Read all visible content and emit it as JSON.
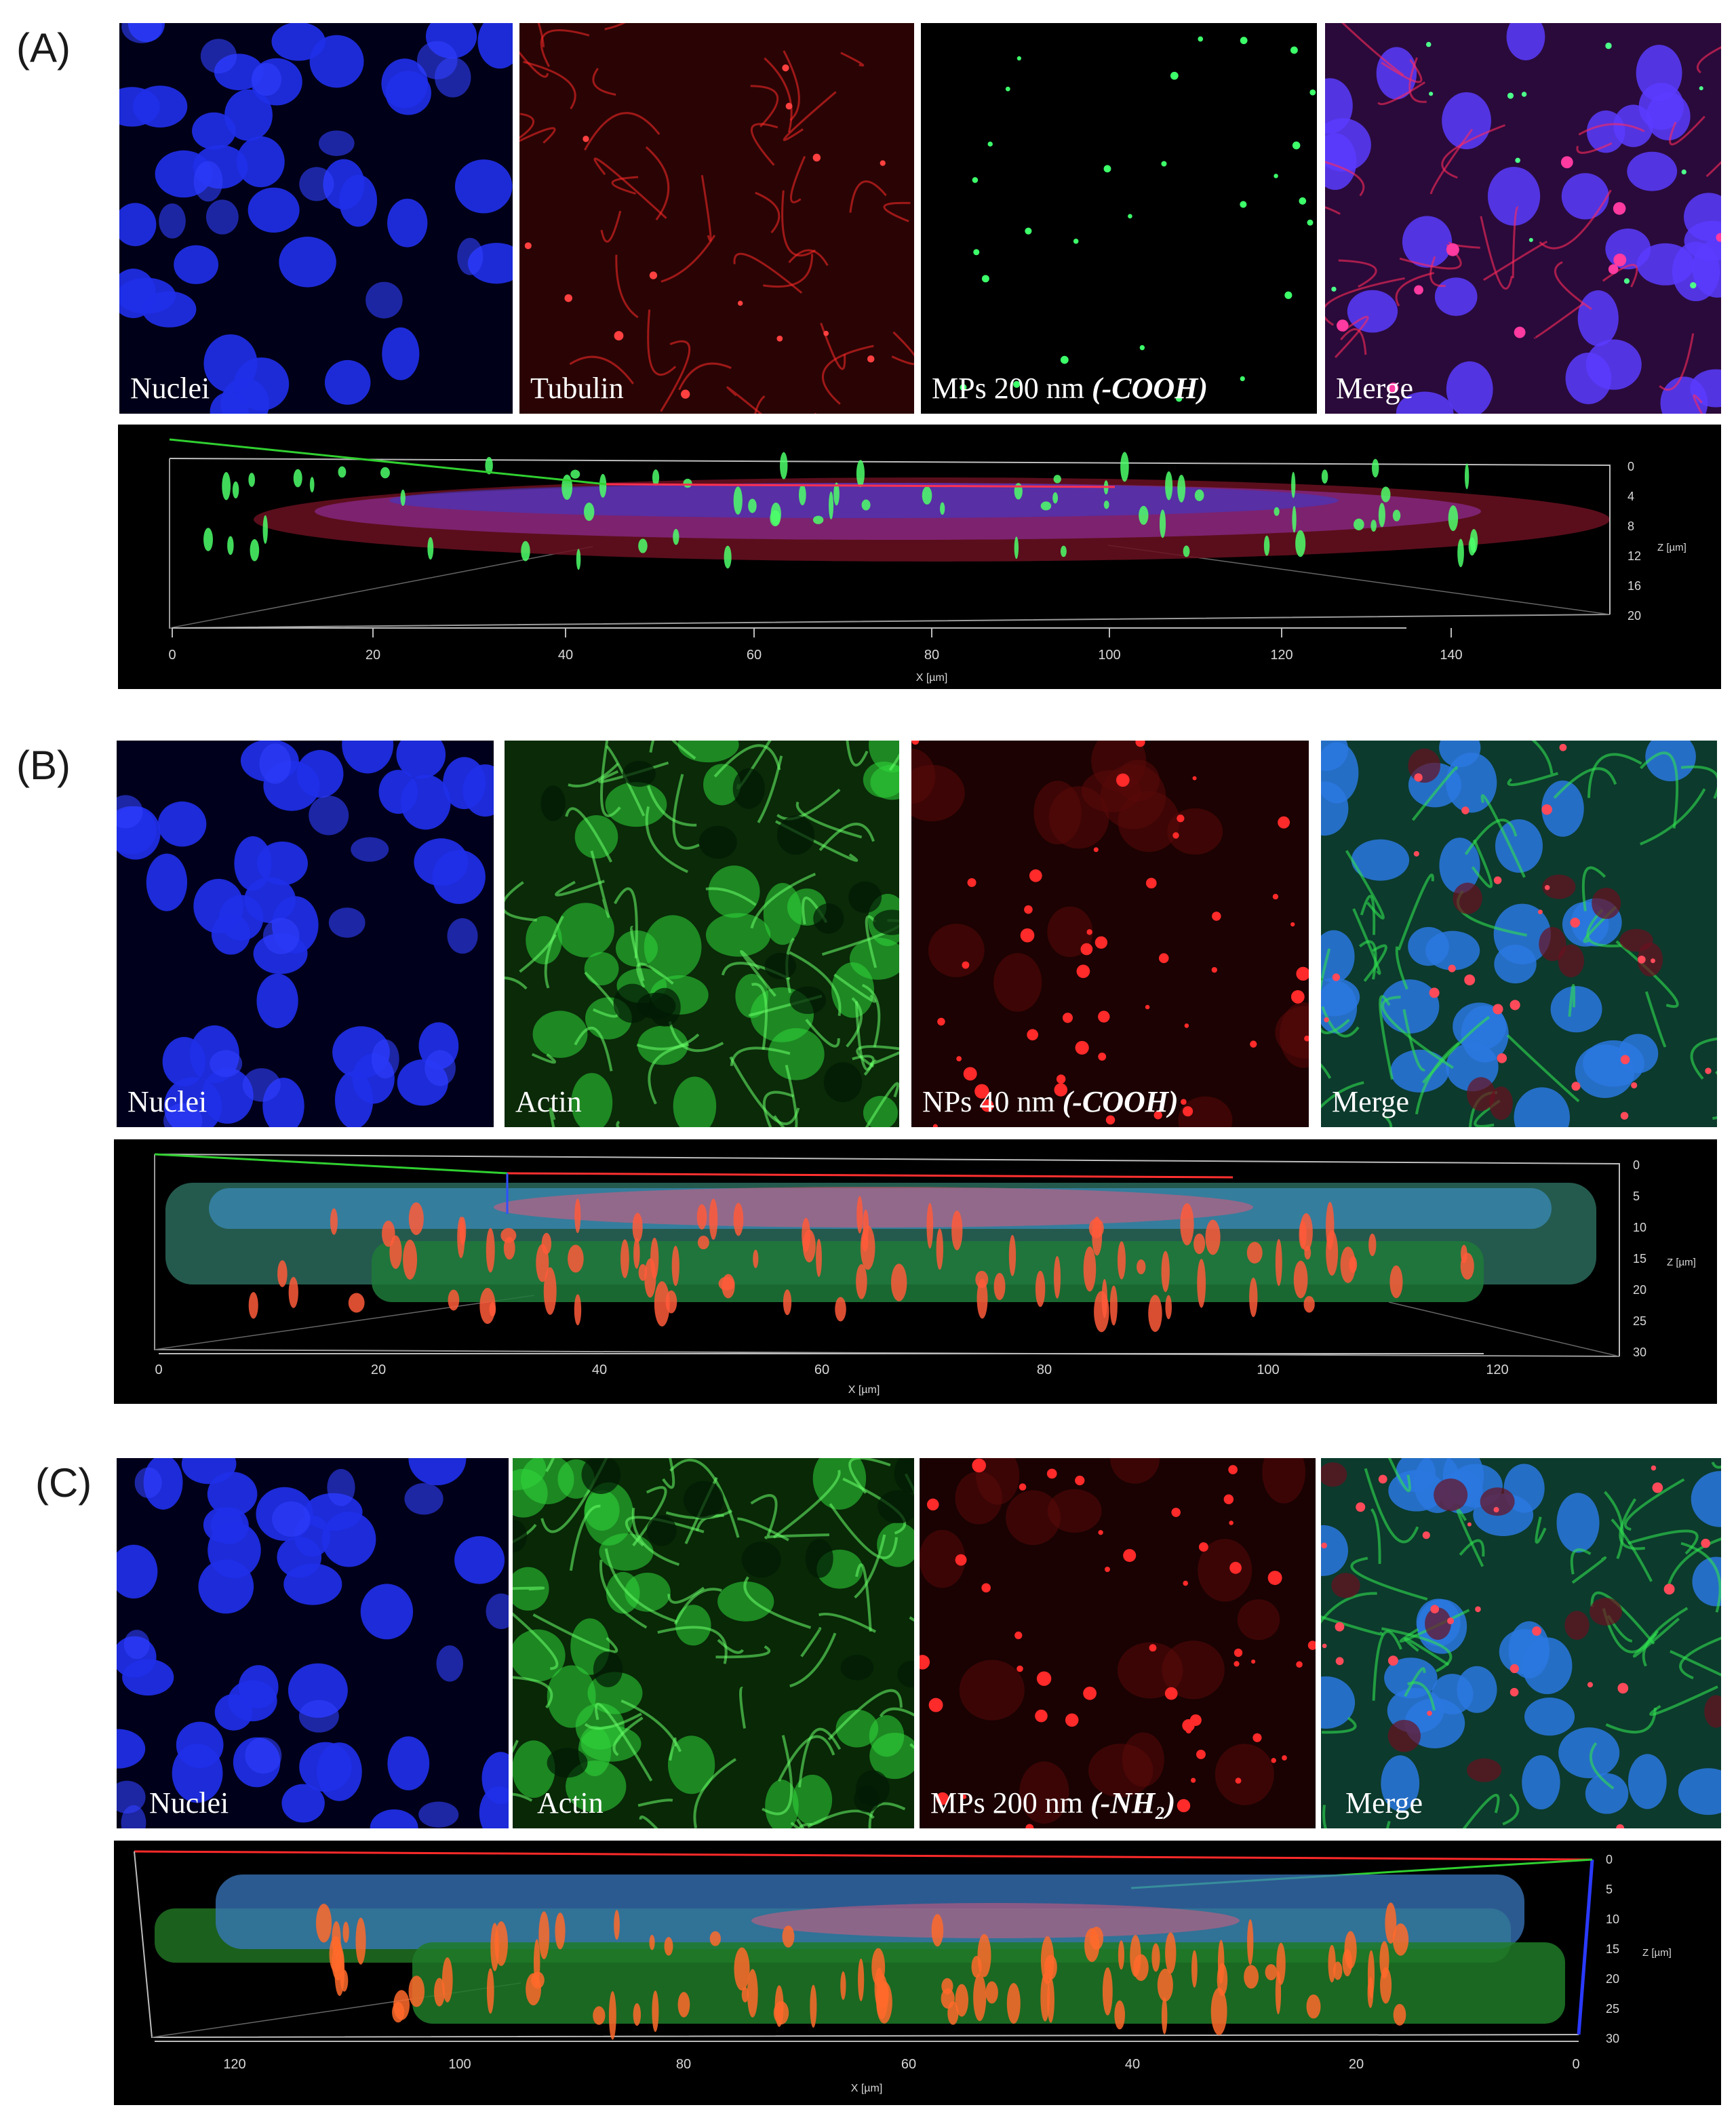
{
  "panels": [
    {
      "label": "(A)",
      "channels": [
        {
          "caption": "Nuclei",
          "stain": "nuclei",
          "color": "#1a2cff"
        },
        {
          "caption": "Tubulin",
          "stain": "tubulin",
          "color": "#d01818"
        },
        {
          "caption": "MPs 200 nm ",
          "caption_em": "(-COOH)",
          "stain": "particles",
          "color": "#35ff5a"
        },
        {
          "caption": "Merge",
          "stain": "merge",
          "color": "#7a3cff"
        }
      ],
      "projection": {
        "x_axis_title": "X [µm]",
        "z_axis_title": "Z [µm]",
        "x_ticks": [
          "0",
          "20",
          "40",
          "60",
          "80",
          "100",
          "120",
          "140"
        ],
        "z_ticks": [
          "0",
          "4",
          "8",
          "12",
          "16",
          "20"
        ]
      }
    },
    {
      "label": "(B)",
      "channels": [
        {
          "caption": "Nuclei",
          "stain": "nuclei",
          "color": "#1a2cff"
        },
        {
          "caption": "Actin",
          "stain": "actin",
          "color": "#22d02a"
        },
        {
          "caption": "NPs 40 nm ",
          "caption_em": "(-COOH)",
          "stain": "particles",
          "color": "#ff2a2a"
        },
        {
          "caption": "Merge",
          "stain": "merge",
          "color": "#2a8cff"
        }
      ],
      "projection": {
        "x_axis_title": "X [µm]",
        "z_axis_title": "Z [µm]",
        "x_ticks": [
          "0",
          "20",
          "40",
          "60",
          "80",
          "100",
          "120"
        ],
        "z_ticks": [
          "0",
          "5",
          "10",
          "15",
          "20",
          "25",
          "30"
        ]
      }
    },
    {
      "label": "(C)",
      "channels": [
        {
          "caption": "Nuclei",
          "stain": "nuclei",
          "color": "#1a2cff"
        },
        {
          "caption": "Actin",
          "stain": "actin",
          "color": "#22d02a"
        },
        {
          "caption": "MPs 200 nm ",
          "caption_em": "(-NH₂)",
          "stain": "particles",
          "color": "#ff2a2a"
        },
        {
          "caption": "Merge",
          "stain": "merge",
          "color": "#2a8cff"
        }
      ],
      "projection": {
        "x_axis_title": "X [µm]",
        "z_axis_title": "Z [µm]",
        "x_ticks": [
          "120",
          "100",
          "80",
          "60",
          "40",
          "20",
          "0"
        ],
        "z_ticks": [
          "0",
          "5",
          "10",
          "15",
          "20",
          "25",
          "30"
        ]
      }
    }
  ]
}
